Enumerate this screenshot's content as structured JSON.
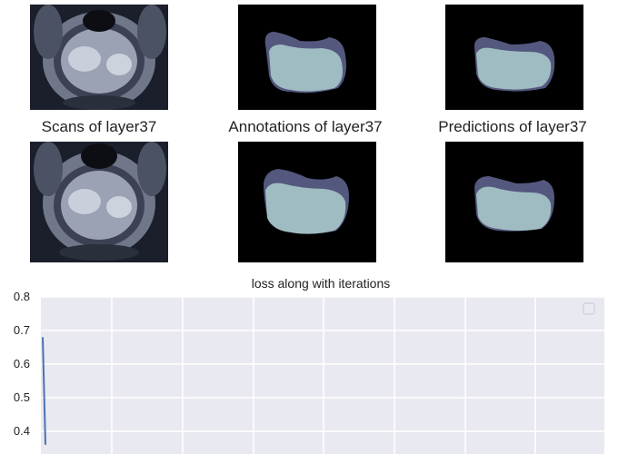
{
  "row1": {
    "captions": [
      "Scans of layer37",
      "Annotations of layer37",
      "Predictions of layer37"
    ]
  },
  "colors": {
    "scan_gray": "#8f98a8",
    "mask_dark": "#54587e",
    "mask_light": "#9fbcc2",
    "plot_bg": "#e9e9f1",
    "line": "#4c72b0"
  },
  "chart_data": {
    "type": "line",
    "title": "loss along with iterations",
    "xlabel": "",
    "ylabel": "",
    "ylim": [
      0.35,
      0.8
    ],
    "yticks": [
      "0.8",
      "0.7",
      "0.6",
      "0.5",
      "0.4"
    ],
    "series": [
      {
        "values": [
          0.68,
          0.36
        ]
      }
    ],
    "grid": true,
    "legend": "top-right"
  }
}
